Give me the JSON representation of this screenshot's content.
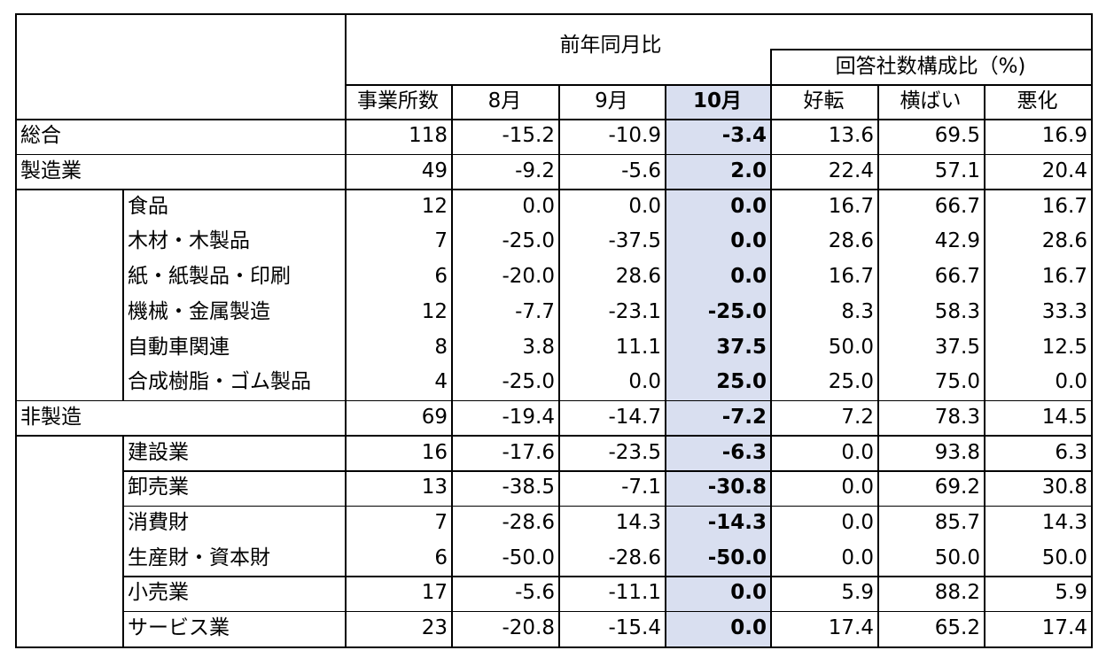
{
  "header": {
    "group_yoy": "前年同月比",
    "group_ratio": "回答社数構成比（%)",
    "columns": [
      "事業所数",
      "8月",
      "9月",
      "10月",
      "好転",
      "横ばい",
      "悪化"
    ]
  },
  "rows": [
    {
      "label": "総合",
      "level": 0,
      "values": [
        "118",
        "-15.2",
        "-10.9",
        "-3.4",
        "13.6",
        "69.5",
        "16.9"
      ]
    },
    {
      "label": "製造業",
      "level": 0,
      "values": [
        "49",
        "-9.2",
        "-5.6",
        "2.0",
        "22.4",
        "57.1",
        "20.4"
      ]
    },
    {
      "label": "食品",
      "level": 1,
      "values": [
        "12",
        "0.0",
        "0.0",
        "0.0",
        "16.7",
        "66.7",
        "16.7"
      ]
    },
    {
      "label": "木材・木製品",
      "level": 1,
      "values": [
        "7",
        "-25.0",
        "-37.5",
        "0.0",
        "28.6",
        "42.9",
        "28.6"
      ]
    },
    {
      "label": "紙・紙製品・印刷",
      "level": 1,
      "values": [
        "6",
        "-20.0",
        "28.6",
        "0.0",
        "16.7",
        "66.7",
        "16.7"
      ]
    },
    {
      "label": "機械・金属製造",
      "level": 1,
      "values": [
        "12",
        "-7.7",
        "-23.1",
        "-25.0",
        "8.3",
        "58.3",
        "33.3"
      ]
    },
    {
      "label": "自動車関連",
      "level": 1,
      "values": [
        "8",
        "3.8",
        "11.1",
        "37.5",
        "50.0",
        "37.5",
        "12.5"
      ]
    },
    {
      "label": "合成樹脂・ゴム製品",
      "level": 1,
      "values": [
        "4",
        "-25.0",
        "0.0",
        "25.0",
        "25.0",
        "75.0",
        "0.0"
      ]
    },
    {
      "label": "非製造",
      "level": 0,
      "values": [
        "69",
        "-19.4",
        "-14.7",
        "-7.2",
        "7.2",
        "78.3",
        "14.5"
      ]
    },
    {
      "label": "建設業",
      "level": 1,
      "values": [
        "16",
        "-17.6",
        "-23.5",
        "-6.3",
        "0.0",
        "93.8",
        "6.3"
      ]
    },
    {
      "label": "卸売業",
      "level": 1,
      "values": [
        "13",
        "-38.5",
        "-7.1",
        "-30.8",
        "0.0",
        "69.2",
        "30.8"
      ]
    },
    {
      "label": "消費財",
      "level": 1,
      "values": [
        "7",
        "-28.6",
        "14.3",
        "-14.3",
        "0.0",
        "85.7",
        "14.3"
      ]
    },
    {
      "label": "生産財・資本財",
      "level": 1,
      "values": [
        "6",
        "-50.0",
        "-28.6",
        "-50.0",
        "0.0",
        "50.0",
        "50.0"
      ]
    },
    {
      "label": "小売業",
      "level": 1,
      "values": [
        "17",
        "-5.6",
        "-11.1",
        "0.0",
        "5.9",
        "88.2",
        "5.9"
      ]
    },
    {
      "label": "サービス業",
      "level": 1,
      "values": [
        "23",
        "-20.8",
        "-15.4",
        "0.0",
        "17.4",
        "65.2",
        "17.4"
      ]
    }
  ],
  "highlight_column": "10月",
  "colors": {
    "highlight": "#d9dff0",
    "border": "#000000"
  }
}
